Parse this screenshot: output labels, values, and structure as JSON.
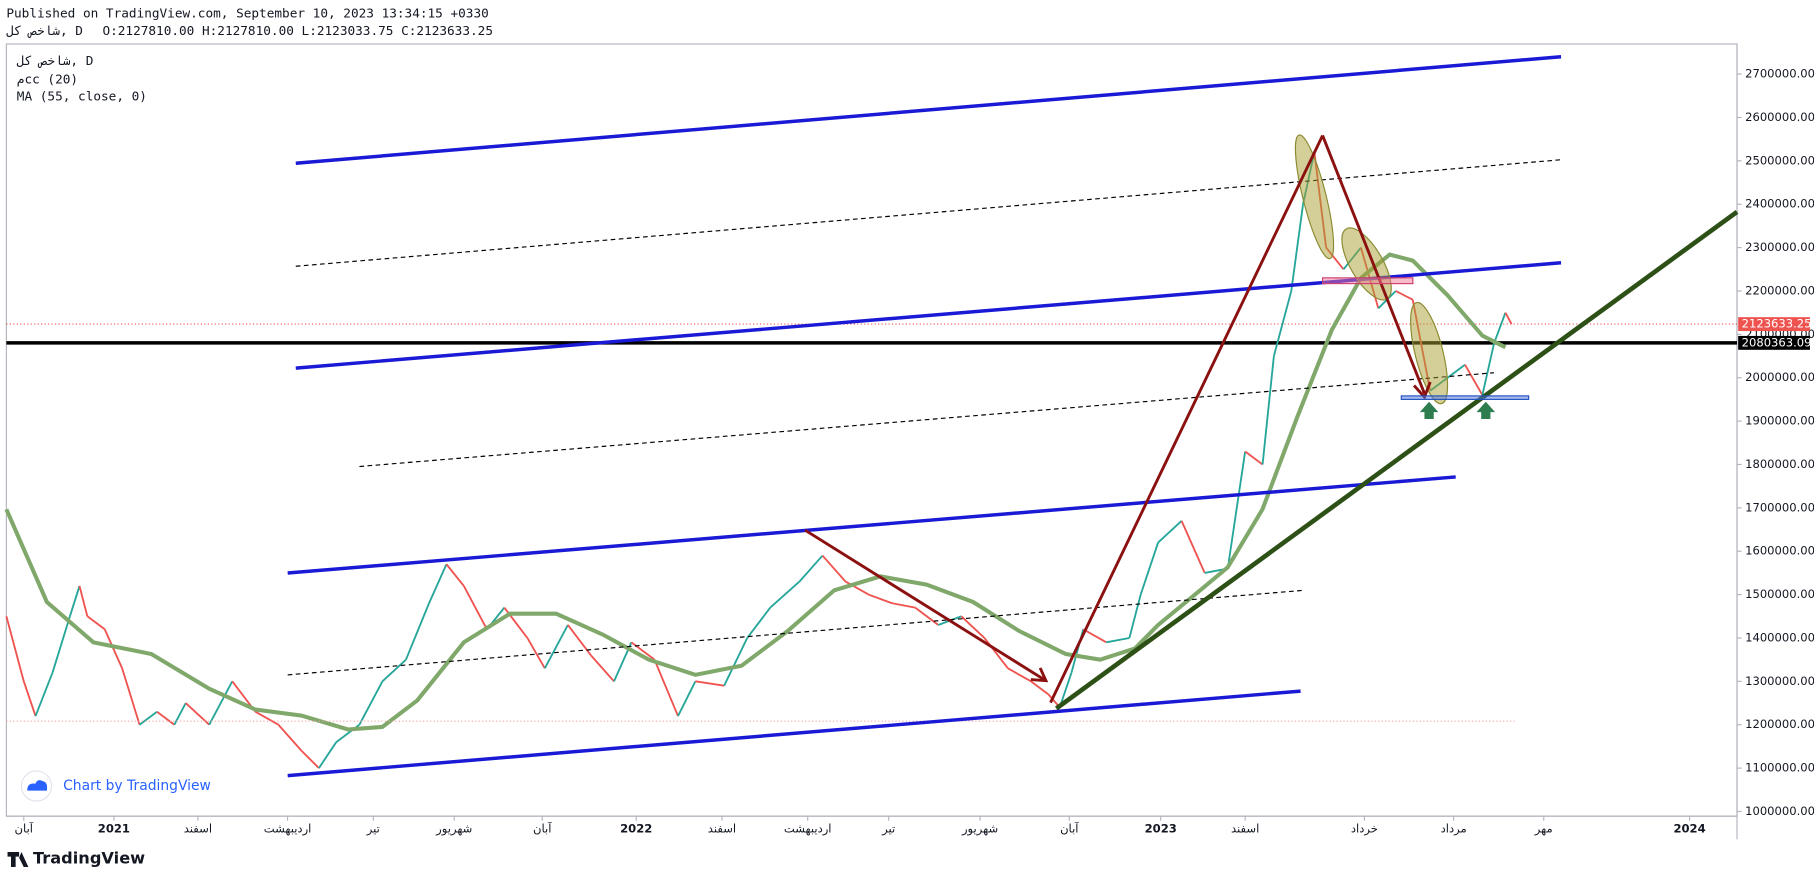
{
  "header": {
    "published": "Published on TradingView.com, September 10, 2023 13:34:15 +0330",
    "symbol": "شاخص کل, D",
    "ohlc": "O:2127810.00 H:2127810.00 L:2123033.75 C:2123633.25"
  },
  "legend": {
    "symbol": "شاخص کل, D",
    "indicator1": "مcc (20)",
    "indicator2": "MA (55, close, 0)"
  },
  "footer": {
    "chart_by": "Chart by TradingView",
    "brand": "TradingView"
  },
  "chart_data": {
    "type": "line",
    "ylim": [
      989300,
      2769400
    ],
    "xlim": [
      -0.4,
      39.36
    ],
    "yticks": [
      {
        "value": 1000000,
        "label": "1000000.00"
      },
      {
        "value": 1100000,
        "label": "1100000.00"
      },
      {
        "value": 1200000,
        "label": "1200000.00"
      },
      {
        "value": 1300000,
        "label": "1300000.00"
      },
      {
        "value": 1400000,
        "label": "1400000.00"
      },
      {
        "value": 1500000,
        "label": "1500000.00"
      },
      {
        "value": 1600000,
        "label": "1600000.00"
      },
      {
        "value": 1700000,
        "label": "1700000.00"
      },
      {
        "value": 1800000,
        "label": "1800000.00"
      },
      {
        "value": 1900000,
        "label": "1900000.00"
      },
      {
        "value": 2000000,
        "label": "2000000.00"
      },
      {
        "value": 2100000,
        "label": "2100000.00"
      },
      {
        "value": 2200000,
        "label": "2200000.00"
      },
      {
        "value": 2300000,
        "label": "2300000.00"
      },
      {
        "value": 2400000,
        "label": "2400000.00"
      },
      {
        "value": 2500000,
        "label": "2500000.00"
      },
      {
        "value": 2600000,
        "label": "2600000.00"
      },
      {
        "value": 2700000,
        "label": "2700000.00"
      }
    ],
    "xticks": [
      {
        "value": 0,
        "label": "آبان"
      },
      {
        "value": 2.07,
        "label": "2021"
      },
      {
        "value": 4.0,
        "label": "اسفند"
      },
      {
        "value": 6.06,
        "label": "اردیبهشت"
      },
      {
        "value": 8.03,
        "label": "تیر"
      },
      {
        "value": 9.89,
        "label": "شهریور"
      },
      {
        "value": 11.91,
        "label": "آبان"
      },
      {
        "value": 14.07,
        "label": "2022"
      },
      {
        "value": 16.04,
        "label": "اسفند"
      },
      {
        "value": 18.01,
        "label": "اردیبهشت"
      },
      {
        "value": 19.87,
        "label": "تیر"
      },
      {
        "value": 21.97,
        "label": "شهریور"
      },
      {
        "value": 24.02,
        "label": "آبان"
      },
      {
        "value": 26.12,
        "label": "2023"
      },
      {
        "value": 28.06,
        "label": "اسفند"
      },
      {
        "value": 30.8,
        "label": "خرداد"
      },
      {
        "value": 32.85,
        "label": "مرداد"
      },
      {
        "value": 34.92,
        "label": "مهر"
      },
      {
        "value": 38.27,
        "label": "2024"
      }
    ],
    "series": [
      {
        "name": "شاخص کل",
        "up_color": "#26a69a",
        "down_color": "#ef5350",
        "x": [
          -0.4,
          0,
          0.27,
          0.66,
          1.06,
          1.28,
          1.46,
          1.86,
          2.26,
          2.66,
          3.06,
          3.46,
          3.72,
          4.26,
          4.79,
          5.32,
          5.85,
          6.38,
          6.78,
          7.18,
          7.71,
          8.24,
          8.78,
          9.31,
          9.71,
          10.11,
          10.64,
          11.04,
          11.57,
          11.97,
          12.5,
          13.03,
          13.56,
          13.96,
          14.49,
          15.03,
          15.43,
          16.09,
          16.62,
          17.15,
          17.82,
          18.35,
          18.88,
          19.41,
          19.95,
          20.48,
          21.01,
          21.54,
          22.07,
          22.61,
          23.14,
          23.54,
          23.8,
          24.07,
          24.34,
          24.87,
          25.4,
          25.66,
          26.06,
          26.6,
          27.13,
          27.66,
          28.06,
          28.46,
          28.72,
          29.12,
          29.39,
          29.65,
          29.92,
          30.32,
          30.72,
          31.12,
          31.52,
          31.91,
          32.31,
          32.71,
          33.11,
          33.51,
          33.78,
          34.04,
          34.18
        ],
        "values": [
          1450000,
          1300000,
          1220000,
          1320000,
          1450000,
          1520000,
          1450000,
          1420000,
          1330000,
          1200000,
          1230000,
          1200000,
          1250000,
          1200000,
          1300000,
          1230000,
          1200000,
          1140000,
          1100000,
          1160000,
          1200000,
          1300000,
          1350000,
          1480000,
          1570000,
          1520000,
          1420000,
          1470000,
          1400000,
          1330000,
          1430000,
          1360000,
          1300000,
          1390000,
          1350000,
          1220000,
          1300000,
          1290000,
          1400000,
          1470000,
          1530000,
          1590000,
          1530000,
          1500000,
          1480000,
          1470000,
          1430000,
          1450000,
          1400000,
          1330000,
          1300000,
          1270000,
          1240000,
          1320000,
          1420000,
          1390000,
          1400000,
          1500000,
          1620000,
          1670000,
          1550000,
          1560000,
          1830000,
          1800000,
          2050000,
          2200000,
          2400000,
          2520000,
          2300000,
          2250000,
          2300000,
          2160000,
          2200000,
          2180000,
          1970000,
          2000000,
          2030000,
          1960000,
          2080000,
          2150000,
          2123633.25
        ]
      },
      {
        "name": "MA (55, close, 0)",
        "color": "#7fa86a",
        "x": [
          -0.4,
          0.53,
          1.6,
          2.93,
          4.26,
          5.32,
          6.38,
          7.45,
          8.24,
          9.04,
          10.11,
          11.17,
          12.23,
          13.3,
          14.36,
          15.43,
          16.49,
          17.55,
          18.62,
          19.68,
          20.74,
          21.81,
          22.87,
          23.94,
          24.73,
          25.53,
          26.06,
          26.86,
          27.66,
          28.46,
          29.26,
          30.05,
          30.72,
          31.38,
          31.91,
          32.71,
          33.51,
          34.04
        ],
        "values": [
          1696600,
          1483000,
          1390000,
          1363000,
          1283000,
          1235000,
          1221000,
          1189000,
          1195000,
          1256000,
          1390000,
          1456000,
          1456000,
          1408000,
          1350000,
          1315000,
          1336000,
          1416000,
          1510000,
          1542000,
          1523000,
          1483000,
          1416000,
          1363000,
          1350000,
          1376000,
          1430000,
          1496000,
          1563000,
          1697000,
          1910000,
          2110000,
          2230000,
          2284000,
          2270000,
          2190000,
          2097000,
          2070000
        ]
      }
    ],
    "price_lines": [
      {
        "value": 2123633.25,
        "label": "2123633.25",
        "color": "#ef5350"
      },
      {
        "value": 2080363.09,
        "label": "2080363.09",
        "color": "#000000"
      }
    ]
  }
}
